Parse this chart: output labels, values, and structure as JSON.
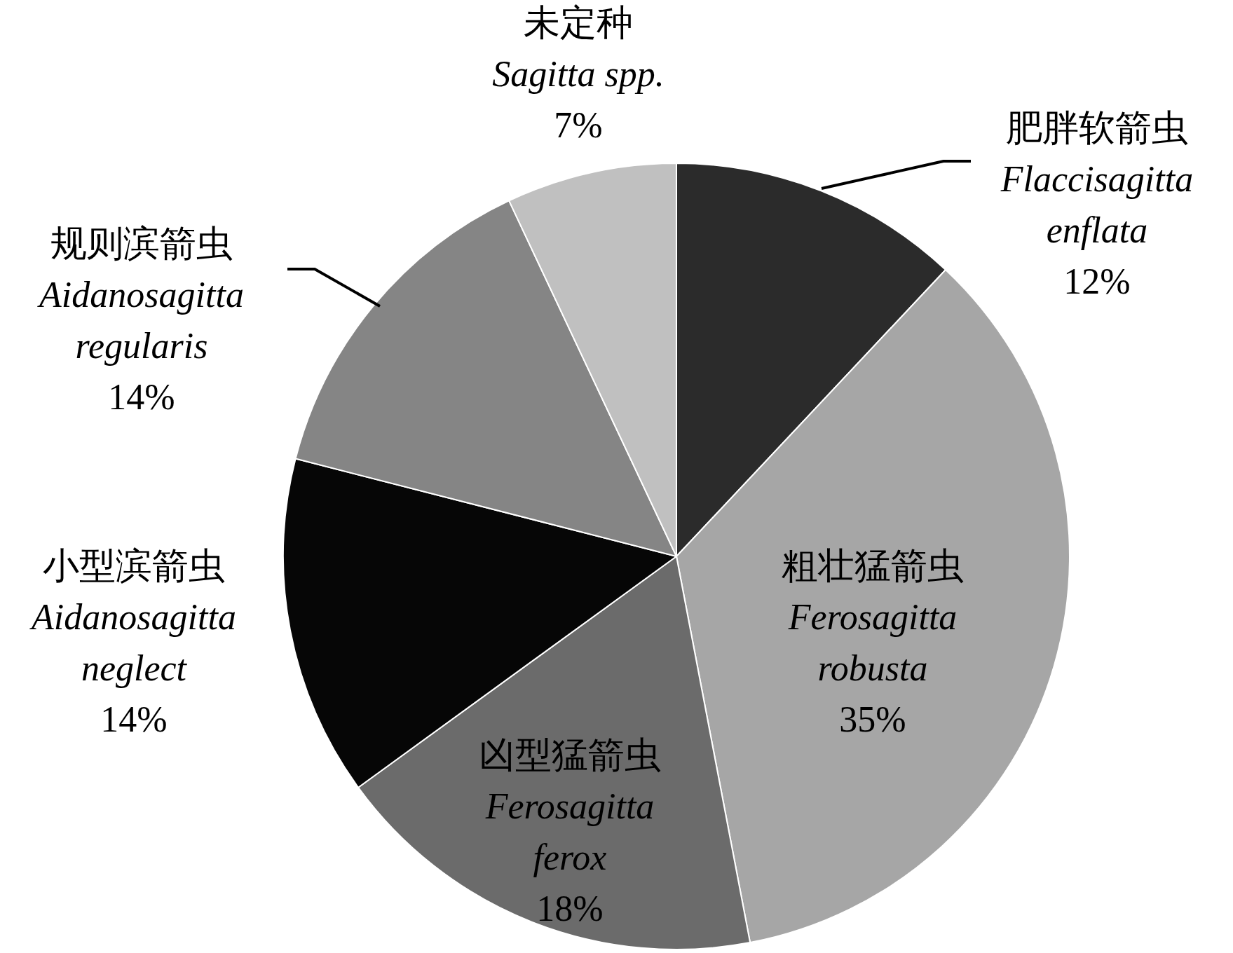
{
  "chart_data": {
    "type": "pie",
    "categories": [
      "肥胖软箭虫\nFlaccisagitta\nenflata",
      "粗壮猛箭虫\nFerosagitta\nrobusta",
      "凶型猛箭虫\nFerosagitta\nferox",
      "小型滨箭虫\nAidanosagitta\nneglect",
      "规则滨箭虫\nAidanosagitta\nregularis",
      "未定种\nSagitta spp."
    ],
    "values": [
      12,
      35,
      18,
      14,
      14,
      7
    ],
    "colors": [
      "#2b2b2b",
      "#a6a6a6",
      "#6b6b6b",
      "#060606",
      "#858585",
      "#c0c0c0"
    ],
    "value_labels": [
      "12%",
      "35%",
      "18%",
      "14%",
      "14%",
      "7%"
    ]
  }
}
